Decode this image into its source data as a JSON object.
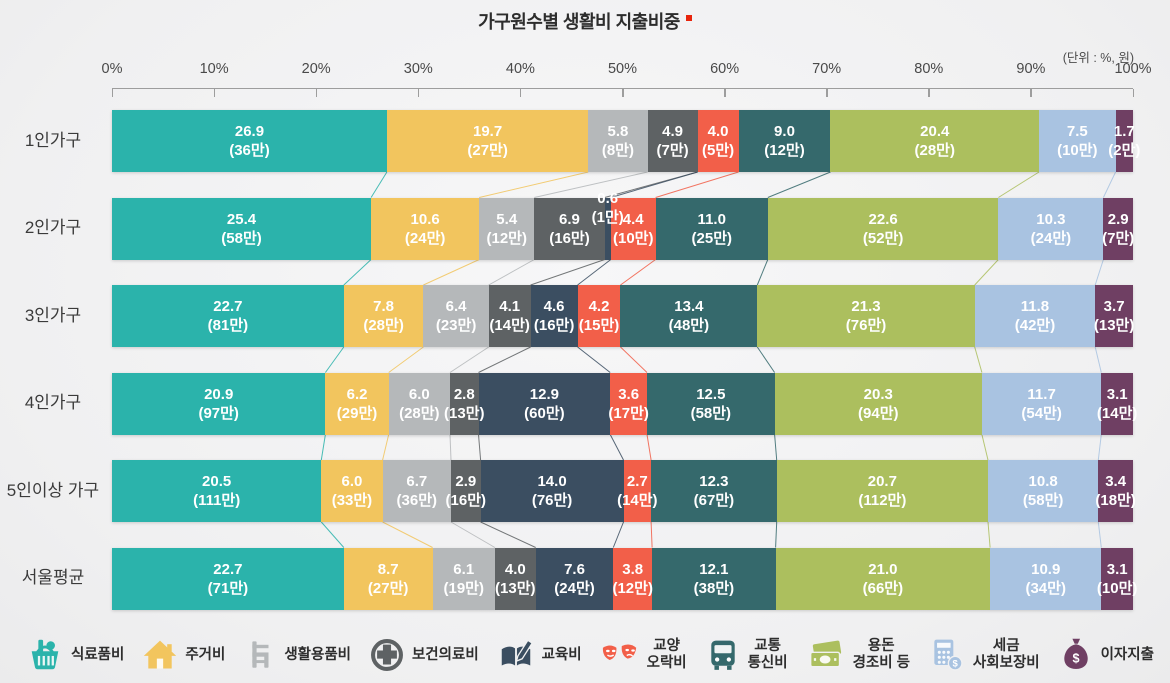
{
  "chart_data": {
    "type": "bar",
    "stacked": true,
    "orientation": "horizontal",
    "title": "가구원수별 생활비 지출비중",
    "unit": "(단위 : %, 원)",
    "xlim": [
      0,
      100
    ],
    "x_ticks": [
      "0%",
      "10%",
      "20%",
      "30%",
      "40%",
      "50%",
      "60%",
      "70%",
      "80%",
      "90%",
      "100%"
    ],
    "categories": [
      "1인가구",
      "2인가구",
      "3인가구",
      "4인가구",
      "5인이상 가구",
      "서울평균"
    ],
    "series": [
      {
        "name": "식료품비",
        "legend_lines": [
          "식료품비"
        ],
        "icon": "basket",
        "color": "#2bb3ab",
        "values": [
          26.9,
          25.4,
          22.7,
          20.9,
          20.5,
          22.7
        ],
        "amounts": [
          "36만",
          "58만",
          "81만",
          "97만",
          "111만",
          "71만"
        ]
      },
      {
        "name": "주거비",
        "legend_lines": [
          "주거비"
        ],
        "icon": "house",
        "color": "#f2c55e",
        "values": [
          19.7,
          10.6,
          7.8,
          6.2,
          6.0,
          8.7
        ],
        "amounts": [
          "27만",
          "24만",
          "28만",
          "29만",
          "33만",
          "27만"
        ]
      },
      {
        "name": "생활용품비",
        "legend_lines": [
          "생활용품비"
        ],
        "icon": "chair",
        "color": "#b5b8ba",
        "values": [
          5.8,
          5.4,
          6.4,
          6.0,
          6.7,
          6.1
        ],
        "amounts": [
          "8만",
          "12만",
          "23만",
          "28만",
          "36만",
          "19만"
        ]
      },
      {
        "name": "보건의료비",
        "legend_lines": [
          "보건의료비"
        ],
        "icon": "medical-cross",
        "color": "#5e6264",
        "values": [
          4.9,
          6.9,
          4.1,
          2.8,
          2.9,
          4.0
        ],
        "amounts": [
          "7만",
          "16만",
          "14만",
          "13만",
          "16만",
          "13만"
        ]
      },
      {
        "name": "교육비",
        "legend_lines": [
          "교육비"
        ],
        "icon": "book-pencil",
        "color": "#3b4e61",
        "values": [
          0,
          0.6,
          4.6,
          12.9,
          14.0,
          7.6
        ],
        "amounts": [
          null,
          "1만",
          "16만",
          "60만",
          "76만",
          "24만"
        ]
      },
      {
        "name": "교양오락비",
        "legend_lines": [
          "교양",
          "오락비"
        ],
        "icon": "theater-masks",
        "color": "#f25f49",
        "values": [
          4.0,
          4.4,
          4.2,
          3.6,
          2.7,
          3.8
        ],
        "amounts": [
          "5만",
          "10만",
          "15만",
          "17만",
          "14만",
          "12만"
        ]
      },
      {
        "name": "교통통신비",
        "legend_lines": [
          "교통",
          "통신비"
        ],
        "icon": "bus",
        "color": "#35696c",
        "values": [
          9.0,
          11.0,
          13.4,
          12.5,
          12.3,
          12.1
        ],
        "amounts": [
          "12만",
          "25만",
          "48만",
          "58만",
          "67만",
          "38만"
        ]
      },
      {
        "name": "용돈 경조비 등",
        "legend_lines": [
          "용돈",
          "경조비 등"
        ],
        "icon": "banknotes",
        "color": "#acbf5e",
        "values": [
          20.4,
          22.6,
          21.3,
          20.3,
          20.7,
          21.0
        ],
        "amounts": [
          "28만",
          "52만",
          "76만",
          "94만",
          "112만",
          "66만"
        ]
      },
      {
        "name": "세금 사회보장비",
        "legend_lines": [
          "세금",
          "사회보장비"
        ],
        "icon": "calculator",
        "color": "#a9c3e1",
        "values": [
          7.5,
          10.3,
          11.8,
          11.7,
          10.8,
          10.9
        ],
        "amounts": [
          "10만",
          "24만",
          "42만",
          "54만",
          "58만",
          "34만"
        ]
      },
      {
        "name": "이자지출",
        "legend_lines": [
          "이자지출"
        ],
        "icon": "money-bag",
        "color": "#6f3f63",
        "values": [
          1.7,
          2.9,
          3.7,
          3.1,
          3.4,
          3.1
        ],
        "amounts": [
          "2만",
          "7만",
          "13만",
          "14만",
          "18만",
          "10만"
        ]
      }
    ]
  }
}
